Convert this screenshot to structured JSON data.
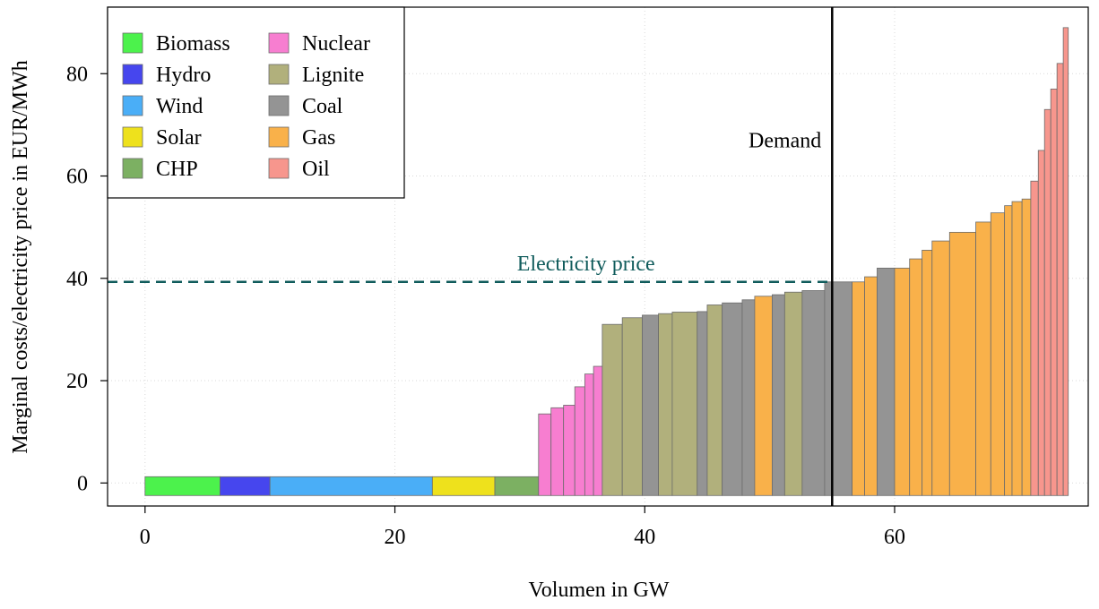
{
  "chart_data": {
    "type": "bar",
    "subtype": "merit-order-step",
    "xlabel": "Volumen in GW",
    "ylabel": "Marginal costs/electricity price in EUR/MWh",
    "xlim": [
      -3,
      75.5
    ],
    "ylim": [
      -4.5,
      93
    ],
    "xticks": [
      0,
      20,
      40,
      60
    ],
    "yticks": [
      0,
      20,
      40,
      60,
      80
    ],
    "grid": true,
    "legend_position": "top-left",
    "colors": {
      "Biomass": "#4cf24c",
      "Hydro": "#4646ee",
      "Wind": "#4aaef7",
      "Solar": "#eee11c",
      "CHP": "#7cb062",
      "Nuclear": "#f77ed0",
      "Lignite": "#b1b07c",
      "Coal": "#949494",
      "Gas": "#f9b14a",
      "Oil": "#f7968d"
    },
    "legend": [
      {
        "name": "Biomass",
        "color": "#4cf24c"
      },
      {
        "name": "Hydro",
        "color": "#4646ee"
      },
      {
        "name": "Wind",
        "color": "#4aaef7"
      },
      {
        "name": "Solar",
        "color": "#eee11c"
      },
      {
        "name": "CHP",
        "color": "#7cb062"
      },
      {
        "name": "Nuclear",
        "color": "#f77ed0"
      },
      {
        "name": "Lignite",
        "color": "#b1b07c"
      },
      {
        "name": "Coal",
        "color": "#949494"
      },
      {
        "name": "Gas",
        "color": "#f9b14a"
      },
      {
        "name": "Oil",
        "color": "#f7968d"
      }
    ],
    "bars": [
      {
        "type": "Biomass",
        "x0": 0,
        "x1": 6,
        "value": 0
      },
      {
        "type": "Hydro",
        "x0": 6,
        "x1": 10,
        "value": 0
      },
      {
        "type": "Wind",
        "x0": 10,
        "x1": 23,
        "value": 0
      },
      {
        "type": "Solar",
        "x0": 23,
        "x1": 28,
        "value": 0
      },
      {
        "type": "CHP",
        "x0": 28,
        "x1": 31.5,
        "value": 0
      },
      {
        "type": "Nuclear",
        "x0": 31.5,
        "x1": 32.5,
        "value": 13.5
      },
      {
        "type": "Nuclear",
        "x0": 32.5,
        "x1": 33.5,
        "value": 14.7
      },
      {
        "type": "Nuclear",
        "x0": 33.5,
        "x1": 34.4,
        "value": 15.2
      },
      {
        "type": "Nuclear",
        "x0": 34.4,
        "x1": 35.2,
        "value": 18.8
      },
      {
        "type": "Nuclear",
        "x0": 35.2,
        "x1": 35.9,
        "value": 21.3
      },
      {
        "type": "Nuclear",
        "x0": 35.9,
        "x1": 36.6,
        "value": 22.8
      },
      {
        "type": "Lignite",
        "x0": 36.6,
        "x1": 38.2,
        "value": 31.0
      },
      {
        "type": "Lignite",
        "x0": 38.2,
        "x1": 39.8,
        "value": 32.3
      },
      {
        "type": "Coal",
        "x0": 39.8,
        "x1": 41.1,
        "value": 32.8
      },
      {
        "type": "Lignite",
        "x0": 41.1,
        "x1": 42.2,
        "value": 33.1
      },
      {
        "type": "Lignite",
        "x0": 42.2,
        "x1": 44.2,
        "value": 33.4
      },
      {
        "type": "Coal",
        "x0": 44.2,
        "x1": 45.0,
        "value": 33.5
      },
      {
        "type": "Lignite",
        "x0": 45.0,
        "x1": 46.2,
        "value": 34.8
      },
      {
        "type": "Coal",
        "x0": 46.2,
        "x1": 47.8,
        "value": 35.2
      },
      {
        "type": "Coal",
        "x0": 47.8,
        "x1": 48.8,
        "value": 35.8
      },
      {
        "type": "Gas",
        "x0": 48.8,
        "x1": 50.2,
        "value": 36.5
      },
      {
        "type": "Coal",
        "x0": 50.2,
        "x1": 51.2,
        "value": 36.8
      },
      {
        "type": "Lignite",
        "x0": 51.2,
        "x1": 52.6,
        "value": 37.3
      },
      {
        "type": "Coal",
        "x0": 52.6,
        "x1": 54.4,
        "value": 37.6
      },
      {
        "type": "Coal",
        "x0": 54.4,
        "x1": 56.6,
        "value": 39.3
      },
      {
        "type": "Gas",
        "x0": 56.6,
        "x1": 57.6,
        "value": 39.3
      },
      {
        "type": "Gas",
        "x0": 57.6,
        "x1": 58.6,
        "value": 40.3
      },
      {
        "type": "Coal",
        "x0": 58.6,
        "x1": 60.0,
        "value": 42.0
      },
      {
        "type": "Gas",
        "x0": 60.0,
        "x1": 61.2,
        "value": 42.0
      },
      {
        "type": "Gas",
        "x0": 61.2,
        "x1": 62.2,
        "value": 43.8
      },
      {
        "type": "Gas",
        "x0": 62.2,
        "x1": 63.0,
        "value": 45.5
      },
      {
        "type": "Gas",
        "x0": 63.0,
        "x1": 64.4,
        "value": 47.3
      },
      {
        "type": "Gas",
        "x0": 64.4,
        "x1": 66.5,
        "value": 49.0
      },
      {
        "type": "Gas",
        "x0": 66.5,
        "x1": 67.7,
        "value": 51.0
      },
      {
        "type": "Gas",
        "x0": 67.7,
        "x1": 68.8,
        "value": 52.8
      },
      {
        "type": "Gas",
        "x0": 68.8,
        "x1": 69.4,
        "value": 54.2
      },
      {
        "type": "Gas",
        "x0": 69.4,
        "x1": 70.2,
        "value": 55.0
      },
      {
        "type": "Gas",
        "x0": 70.2,
        "x1": 70.9,
        "value": 55.5
      },
      {
        "type": "Oil",
        "x0": 70.9,
        "x1": 71.5,
        "value": 59.0
      },
      {
        "type": "Oil",
        "x0": 71.5,
        "x1": 72.0,
        "value": 65.0
      },
      {
        "type": "Oil",
        "x0": 72.0,
        "x1": 72.5,
        "value": 73.0
      },
      {
        "type": "Oil",
        "x0": 72.5,
        "x1": 73.0,
        "value": 77.0
      },
      {
        "type": "Oil",
        "x0": 73.0,
        "x1": 73.5,
        "value": 82.0
      },
      {
        "type": "Oil",
        "x0": 73.5,
        "x1": 73.9,
        "value": 89.0
      }
    ],
    "demand": {
      "x": 55.0,
      "label": "Demand"
    },
    "price": {
      "y": 39.3,
      "label": "Electricity price",
      "color": "#0f5b5b"
    }
  }
}
